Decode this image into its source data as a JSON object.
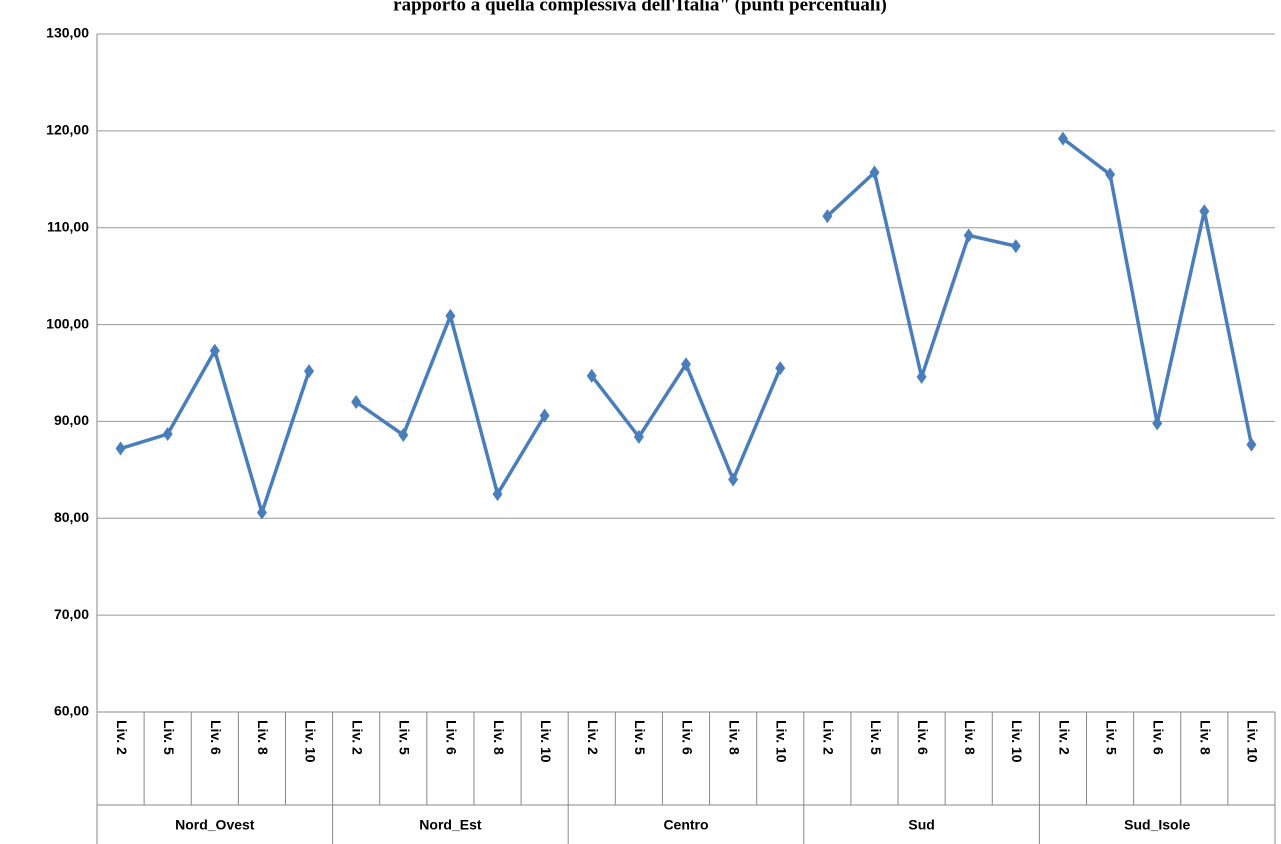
{
  "chart_data": {
    "type": "line",
    "title": "rapporto a quella complessiva dell'Italia\" (punti percentuali)",
    "categories": [
      "Liv. 2",
      "Liv. 5",
      "Liv. 6",
      "Liv. 8",
      "Liv. 10"
    ],
    "groups": [
      {
        "name": "Nord_Ovest",
        "values": [
          87.2,
          88.7,
          97.3,
          80.6,
          95.2
        ]
      },
      {
        "name": "Nord_Est",
        "values": [
          92.0,
          88.6,
          100.9,
          82.5,
          90.6
        ]
      },
      {
        "name": "Centro",
        "values": [
          94.7,
          88.4,
          95.9,
          84.0,
          95.5
        ]
      },
      {
        "name": "Sud",
        "values": [
          111.2,
          115.7,
          94.6,
          109.2,
          108.1
        ]
      },
      {
        "name": "Sud_Isole",
        "values": [
          119.2,
          115.5,
          89.8,
          111.7,
          87.6
        ]
      }
    ],
    "color": "#4a7ebb",
    "ylim": [
      60,
      130
    ],
    "yticks": [
      {
        "value": 60,
        "label": "60,00"
      },
      {
        "value": 70,
        "label": "70,00"
      },
      {
        "value": 80,
        "label": "80,00"
      },
      {
        "value": 90,
        "label": "90,00"
      },
      {
        "value": 100,
        "label": "100,00"
      },
      {
        "value": 110,
        "label": "110,00"
      },
      {
        "value": 120,
        "label": "120,00"
      },
      {
        "value": 130,
        "label": "130,00"
      }
    ],
    "grid": true
  }
}
